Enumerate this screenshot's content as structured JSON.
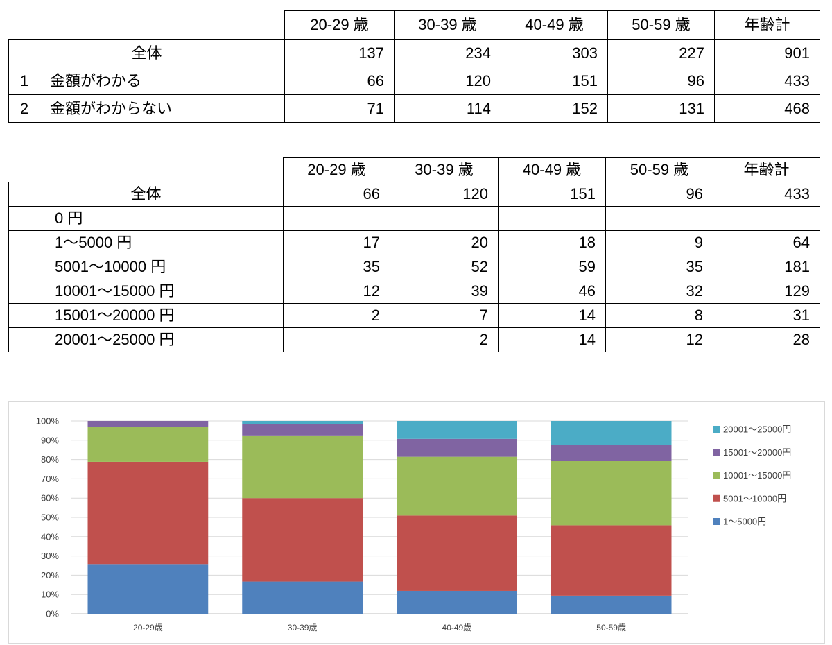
{
  "table1": {
    "headers": [
      "20-29 歳",
      "30-39 歳",
      "40-49 歳",
      "50-59 歳",
      "年齢計"
    ],
    "total": {
      "label": "全体",
      "values": [
        137,
        234,
        303,
        227,
        901
      ]
    },
    "rows": [
      {
        "no": "1",
        "label": "金額がわかる",
        "values": [
          66,
          120,
          151,
          96,
          433
        ]
      },
      {
        "no": "2",
        "label": "金額がわからない",
        "values": [
          71,
          114,
          152,
          131,
          468
        ]
      }
    ]
  },
  "table2": {
    "headers": [
      "20-29 歳",
      "30-39 歳",
      "40-49 歳",
      "50-59 歳",
      "年齢計"
    ],
    "total": {
      "label": "全体",
      "values": [
        66,
        120,
        151,
        96,
        433
      ]
    },
    "rows": [
      {
        "label": "0 円",
        "values": [
          null,
          null,
          null,
          null,
          null
        ]
      },
      {
        "label": "1～5000 円",
        "values": [
          17,
          20,
          18,
          9,
          64
        ]
      },
      {
        "label": "5001～10000 円",
        "values": [
          35,
          52,
          59,
          35,
          181
        ]
      },
      {
        "label": "10001～15000 円",
        "values": [
          12,
          39,
          46,
          32,
          129
        ]
      },
      {
        "label": "15001～20000 円",
        "values": [
          2,
          7,
          14,
          8,
          31
        ]
      },
      {
        "label": "20001～25000 円",
        "values": [
          null,
          2,
          14,
          12,
          28
        ]
      }
    ]
  },
  "chart_data": {
    "type": "bar",
    "stacked": "percent",
    "categories": [
      "20-29歳",
      "30-39歳",
      "40-49歳",
      "50-59歳"
    ],
    "series": [
      {
        "name": "1～5000円",
        "color": "#4F81BD",
        "values": [
          25.8,
          16.7,
          11.9,
          9.4
        ]
      },
      {
        "name": "5001～10000円",
        "color": "#C0504D",
        "values": [
          53.0,
          43.3,
          39.1,
          36.5
        ]
      },
      {
        "name": "10001～15000円",
        "color": "#9BBB59",
        "values": [
          18.2,
          32.5,
          30.5,
          33.3
        ]
      },
      {
        "name": "15001～20000円",
        "color": "#8064A2",
        "values": [
          3.0,
          5.8,
          9.3,
          8.3
        ]
      },
      {
        "name": "20001～25000円",
        "color": "#4BACC6",
        "values": [
          0,
          1.7,
          9.3,
          12.5
        ]
      }
    ],
    "ylim": [
      0,
      100
    ],
    "y_ticks": [
      "0%",
      "10%",
      "20%",
      "30%",
      "40%",
      "50%",
      "60%",
      "70%",
      "80%",
      "90%",
      "100%"
    ],
    "grid": true,
    "legend": "right"
  }
}
